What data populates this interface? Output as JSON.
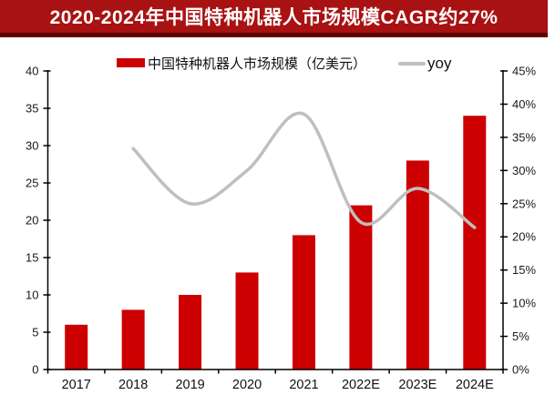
{
  "title_bar": {
    "text": "2020-2024年中国特种机器人市场规模CAGR约27%",
    "background": "#A81212",
    "border_color": "#5E0404",
    "text_color": "#FFFFFF"
  },
  "chart_data": {
    "type": "bar",
    "title": "2020-2024年中国特种机器人市场规模CAGR约27%",
    "categories": [
      "2017",
      "2018",
      "2019",
      "2020",
      "2021",
      "2022E",
      "2023E",
      "2024E"
    ],
    "series": [
      {
        "name": "中国特种机器人市场规模（亿美元）",
        "type": "bar",
        "axis": "left",
        "color": "#CC0000",
        "values": [
          6,
          8,
          10,
          13,
          18,
          22,
          28,
          34
        ]
      },
      {
        "name": "yoy",
        "type": "line",
        "axis": "right",
        "color": "#BFBFBF",
        "values": [
          null,
          33.3,
          25.0,
          30.0,
          38.5,
          22.2,
          27.3,
          21.4
        ]
      }
    ],
    "left_axis": {
      "min": 0,
      "max": 40,
      "step": 5
    },
    "right_axis": {
      "min": 0,
      "max": 45,
      "step": 5,
      "format": "percent"
    },
    "xlabel": "",
    "ylabel": "",
    "grid": false,
    "legend_position": "top",
    "axis_color": "#000000"
  }
}
